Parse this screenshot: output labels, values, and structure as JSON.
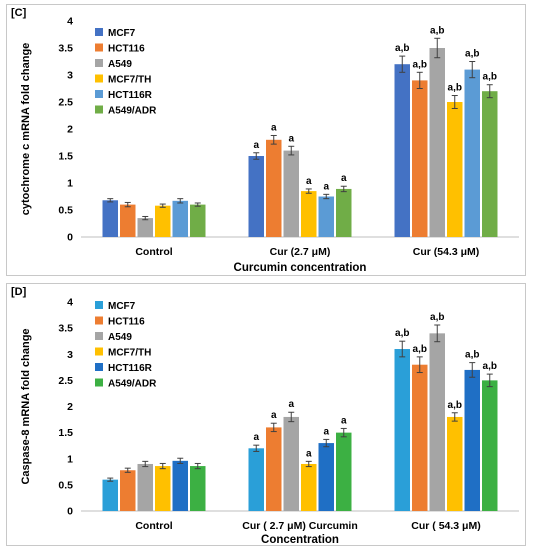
{
  "chart_data": [
    {
      "type": "bar",
      "panel_label": "[C]",
      "categories": [
        "Control",
        "Cur (2.7  μM)",
        "Cur (54.3 μM)"
      ],
      "xlabel": "Curcumin concentration",
      "ylabel": "cytochrome c mRNA fold change",
      "ylim": [
        0,
        4
      ],
      "yticks": [
        "0",
        "0.5",
        "1",
        "1.5",
        "2",
        "2.5",
        "3",
        "3.5",
        "4"
      ],
      "error_bars": true,
      "legend_position": "top-left",
      "series": [
        {
          "name": "MCF7",
          "color": "#4472C4",
          "values": [
            0.68,
            1.5,
            3.2
          ],
          "errors": [
            0.03,
            0.06,
            0.15
          ],
          "labels": [
            "",
            "a",
            "a,b"
          ]
        },
        {
          "name": "HCT116",
          "color": "#ED7D31",
          "values": [
            0.6,
            1.8,
            2.9
          ],
          "errors": [
            0.04,
            0.08,
            0.15
          ],
          "labels": [
            "",
            "a",
            "a,b"
          ]
        },
        {
          "name": "A549",
          "color": "#A5A5A5",
          "values": [
            0.35,
            1.6,
            3.5
          ],
          "errors": [
            0.03,
            0.08,
            0.18
          ],
          "labels": [
            "",
            "a",
            "a,b"
          ]
        },
        {
          "name": "MCF7/TH",
          "color": "#FFC000",
          "values": [
            0.58,
            0.85,
            2.5
          ],
          "errors": [
            0.03,
            0.04,
            0.12
          ],
          "labels": [
            "",
            "a",
            "a,b"
          ]
        },
        {
          "name": "HCT116R",
          "color": "#5B9BD5",
          "values": [
            0.67,
            0.75,
            3.1
          ],
          "errors": [
            0.04,
            0.04,
            0.15
          ],
          "labels": [
            "",
            "a",
            "a,b"
          ]
        },
        {
          "name": "A549/ADR",
          "color": "#70AD47",
          "values": [
            0.6,
            0.89,
            2.7
          ],
          "errors": [
            0.03,
            0.05,
            0.12
          ],
          "labels": [
            "",
            "a",
            "a,b"
          ]
        }
      ]
    },
    {
      "type": "bar",
      "panel_label": "[D]",
      "categories": [
        "Control",
        "Cur ( 2.7  μM) Curcumin",
        "Cur ( 54.3 μM)"
      ],
      "xlabel": "Concentration",
      "ylabel": "Caspase-8 mRNA fold change",
      "ylim": [
        0,
        4
      ],
      "yticks": [
        "0",
        "0.5",
        "1",
        "1.5",
        "2",
        "2.5",
        "3",
        "3.5",
        "4"
      ],
      "error_bars": true,
      "legend_position": "top-left",
      "series": [
        {
          "name": "MCF7",
          "color": "#2A9FD8",
          "values": [
            0.6,
            1.2,
            3.1
          ],
          "errors": [
            0.03,
            0.06,
            0.15
          ],
          "labels": [
            "",
            "a",
            "a,b"
          ]
        },
        {
          "name": "HCT116",
          "color": "#ED7D31",
          "values": [
            0.78,
            1.6,
            2.8
          ],
          "errors": [
            0.04,
            0.08,
            0.15
          ],
          "labels": [
            "",
            "a",
            "a,b"
          ]
        },
        {
          "name": "A549",
          "color": "#A5A5A5",
          "values": [
            0.9,
            1.8,
            3.4
          ],
          "errors": [
            0.05,
            0.09,
            0.16
          ],
          "labels": [
            "",
            "a",
            "a,b"
          ]
        },
        {
          "name": "MCF7/TH",
          "color": "#FFC000",
          "values": [
            0.86,
            0.9,
            1.8
          ],
          "errors": [
            0.05,
            0.05,
            0.08
          ],
          "labels": [
            "",
            "a",
            "a,b"
          ]
        },
        {
          "name": "HCT116R",
          "color": "#1F6FC5",
          "values": [
            0.96,
            1.3,
            2.7
          ],
          "errors": [
            0.05,
            0.07,
            0.14
          ],
          "labels": [
            "",
            "a",
            "a,b"
          ]
        },
        {
          "name": "A549/ADR",
          "color": "#3CB043",
          "values": [
            0.86,
            1.5,
            2.5
          ],
          "errors": [
            0.05,
            0.08,
            0.12
          ],
          "labels": [
            "",
            "a",
            "a,b"
          ]
        }
      ]
    }
  ]
}
